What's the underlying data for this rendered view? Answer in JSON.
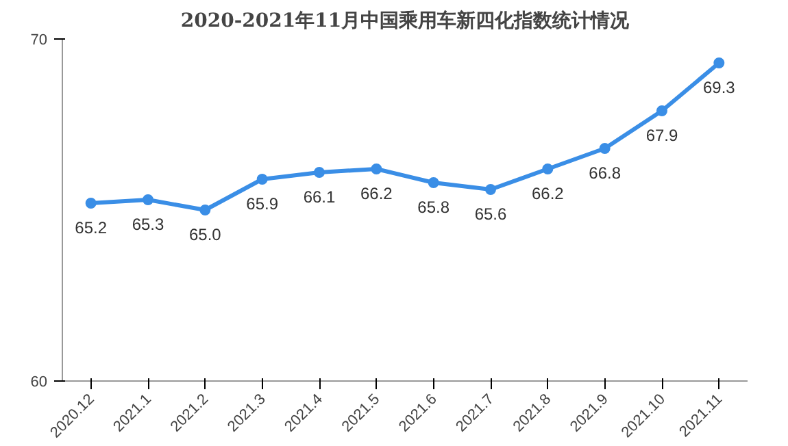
{
  "chart_data": {
    "type": "line",
    "title": "2020-2021年11月中国乘用车新四化指数统计情况",
    "categories": [
      "2020.12",
      "2021.1",
      "2021.2",
      "2021.3",
      "2021.4",
      "2021.5",
      "2021.6",
      "2021.7",
      "2021.8",
      "2021.9",
      "2021.10",
      "2021.11"
    ],
    "series": [
      {
        "color": "#3a8ee6",
        "values": [
          65.2,
          65.3,
          65.0,
          65.9,
          66.1,
          66.2,
          65.8,
          65.6,
          66.2,
          66.8,
          67.9,
          69.3
        ]
      }
    ],
    "value_labels": [
      "65.2",
      "65.3",
      "65.0",
      "65.9",
      "66.1",
      "66.2",
      "65.8",
      "65.6",
      "66.2",
      "66.8",
      "67.9",
      "69.3"
    ],
    "ylim": [
      60,
      70
    ],
    "yticks": [
      60,
      70
    ],
    "marker": "circle",
    "line_style": "solid",
    "grid": false
  }
}
